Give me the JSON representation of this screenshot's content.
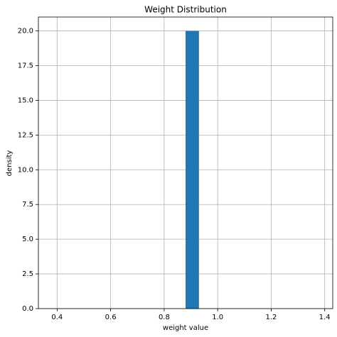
{
  "chart_data": {
    "type": "histogram",
    "title": "Weight Distribution",
    "x_label": "weight value",
    "y_label": "density",
    "bins": [
      0.38,
      0.43,
      0.48,
      0.53,
      0.58,
      0.63,
      0.68,
      0.73,
      0.78,
      0.83,
      0.88,
      0.93,
      0.98,
      1.03,
      1.08,
      1.13,
      1.18,
      1.23,
      1.28,
      1.33,
      1.38
    ],
    "values": [
      0,
      0,
      0,
      0,
      0,
      0,
      0,
      0,
      0,
      0,
      20,
      0,
      0,
      0,
      0,
      0,
      0,
      0,
      0,
      0
    ],
    "color": "#1f77b4",
    "xlim": [
      0.33,
      1.43
    ],
    "ylim": [
      0,
      21
    ],
    "xticks": [
      0.4,
      0.6,
      0.8,
      {
        "value": 1,
        "label": "1.0"
      },
      1.2,
      1.4
    ],
    "yticks": [
      {
        "value": 0,
        "label": "0.0"
      },
      2.5,
      {
        "value": 5,
        "label": "5.0"
      },
      7.5,
      {
        "value": 10,
        "label": "10.0"
      },
      12.5,
      {
        "value": 15,
        "label": "15.0"
      },
      17.5,
      {
        "value": 20,
        "label": "20.0"
      }
    ],
    "grid": true
  }
}
